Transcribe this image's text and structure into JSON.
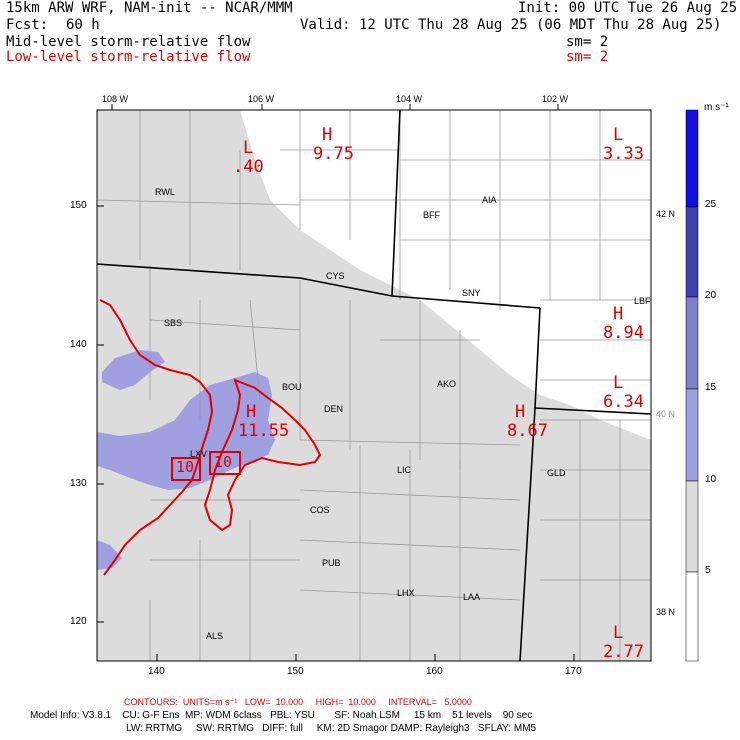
{
  "header": {
    "model_title": "15km ARW WRF, NAM-init -- NCAR/MMM",
    "init": "Init: 00 UTC Tue 26 Aug 25",
    "fcst_label": "Fcst:",
    "fcst_hours": "60 h",
    "valid": "Valid: 12 UTC Thu 28 Aug 25 (06 MDT Thu 28 Aug 25)",
    "field1": "Mid-level storm-relative flow",
    "field1_sm": "sm= 2",
    "field2": "Low-level storm-relative flow",
    "field2_sm": "sm= 2"
  },
  "colors": {
    "contour_red": "#e00000",
    "shade_gray": "#dcdcdc",
    "shade_blue1": "#a0a0e0",
    "shade_blue2": "#8080c8",
    "shade_blue3": "#4040b0",
    "shade_blue4": "#1010e0",
    "border": "#000000"
  },
  "top_longitudes": [
    "108 W",
    "106 W",
    "104 W",
    "102 W"
  ],
  "right_latitudes": [
    "42 N",
    "40 N",
    "38 N"
  ],
  "x_ticks": [
    "140",
    "150",
    "160",
    "170"
  ],
  "y_ticks": [
    "150",
    "140",
    "130",
    "120"
  ],
  "stations": [
    "RWL",
    "CYS",
    "BFF",
    "AIA",
    "SNY",
    "SBS",
    "BOU",
    "DEN",
    "AKO",
    "LBF",
    "LXV",
    "LIC",
    "GLD",
    "COS",
    "PUB",
    "LHX",
    "LAA",
    "ALS"
  ],
  "highs_lows": [
    {
      "type": "L",
      "value": ".40"
    },
    {
      "type": "H",
      "value": "9.75"
    },
    {
      "type": "L",
      "value": "3.33"
    },
    {
      "type": "H",
      "value": "8.94"
    },
    {
      "type": "L",
      "value": "6.34"
    },
    {
      "type": "H",
      "value": "11.55"
    },
    {
      "type": "H",
      "value": "8.67"
    },
    {
      "type": "L",
      "value": "2.77"
    }
  ],
  "contour_labels": [
    "10",
    "10"
  ],
  "colorbar": {
    "units": "m s⁻¹",
    "labels": [
      "25",
      "20",
      "15",
      "10",
      "5"
    ]
  },
  "footer": {
    "contours": "CONTOURS:  UNITS=m s⁻¹   LOW=  10.000     HIGH=  10.000     INTERVAL=   5.0000",
    "model_info_1": "Model Info: V3.8.1    CU: G-F Ens  MP: WDM 6class   PBL: YSU       SF: Noah LSM     15 km    51 levels    90 sec",
    "model_info_2": "LW: RRTMG     SW: RRTMG   DIFF: full     KM: 2D Smagor DAMP: Rayleigh3   SFLAY: MM5"
  }
}
